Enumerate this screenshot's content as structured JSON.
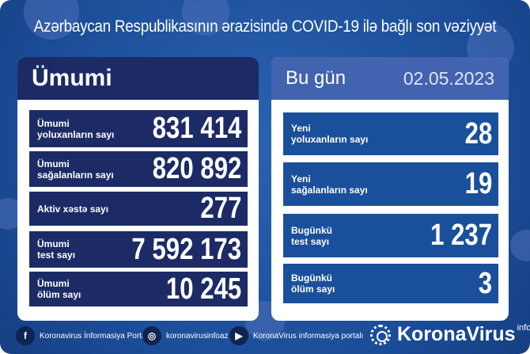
{
  "title": "Azərbaycan Respublikasının ərazisində COVID-19 ilə bağlı son vəziyyət",
  "colors": {
    "background": "#1b4c97",
    "left_header": "#1c2b66",
    "right_header": "#4263b0",
    "row_dark": "#1c2b66",
    "row_blue": "#1a4f9c"
  },
  "total": {
    "heading": "Ümumi",
    "rows": [
      {
        "label": "Ümumi\nyoluxanların sayı",
        "value": "831 414"
      },
      {
        "label": "Ümumi\nsağalanların sayı",
        "value": "820 892"
      },
      {
        "label": "Aktiv xəstə sayı",
        "value": "277"
      },
      {
        "label": "Ümumi\ntest sayı",
        "value": "7 592 173"
      },
      {
        "label": "Ümumi\nölüm sayı",
        "value": "10 245"
      }
    ]
  },
  "today": {
    "heading": "Bu gün",
    "date": "02.05.2023",
    "rows": [
      {
        "label": "Yeni\nyoluxanların sayı",
        "value": "28"
      },
      {
        "label": "Yeni\nsağalanların sayı",
        "value": "19"
      },
      {
        "label": "Bugünkü\ntest sayı",
        "value": "1 237"
      },
      {
        "label": "Bugünkü\nölüm sayı",
        "value": "3"
      }
    ]
  },
  "footer": {
    "links": [
      {
        "icon": "facebook-icon",
        "label": "Koronavirus İnformasiya Portalı"
      },
      {
        "icon": "instagram-icon",
        "label": "koronavirusinfoaz"
      },
      {
        "icon": "youtube-icon",
        "label": "KoronaVirus informasiya portalı"
      }
    ],
    "brand": "KoronaVirus",
    "brand_sup": "info"
  }
}
